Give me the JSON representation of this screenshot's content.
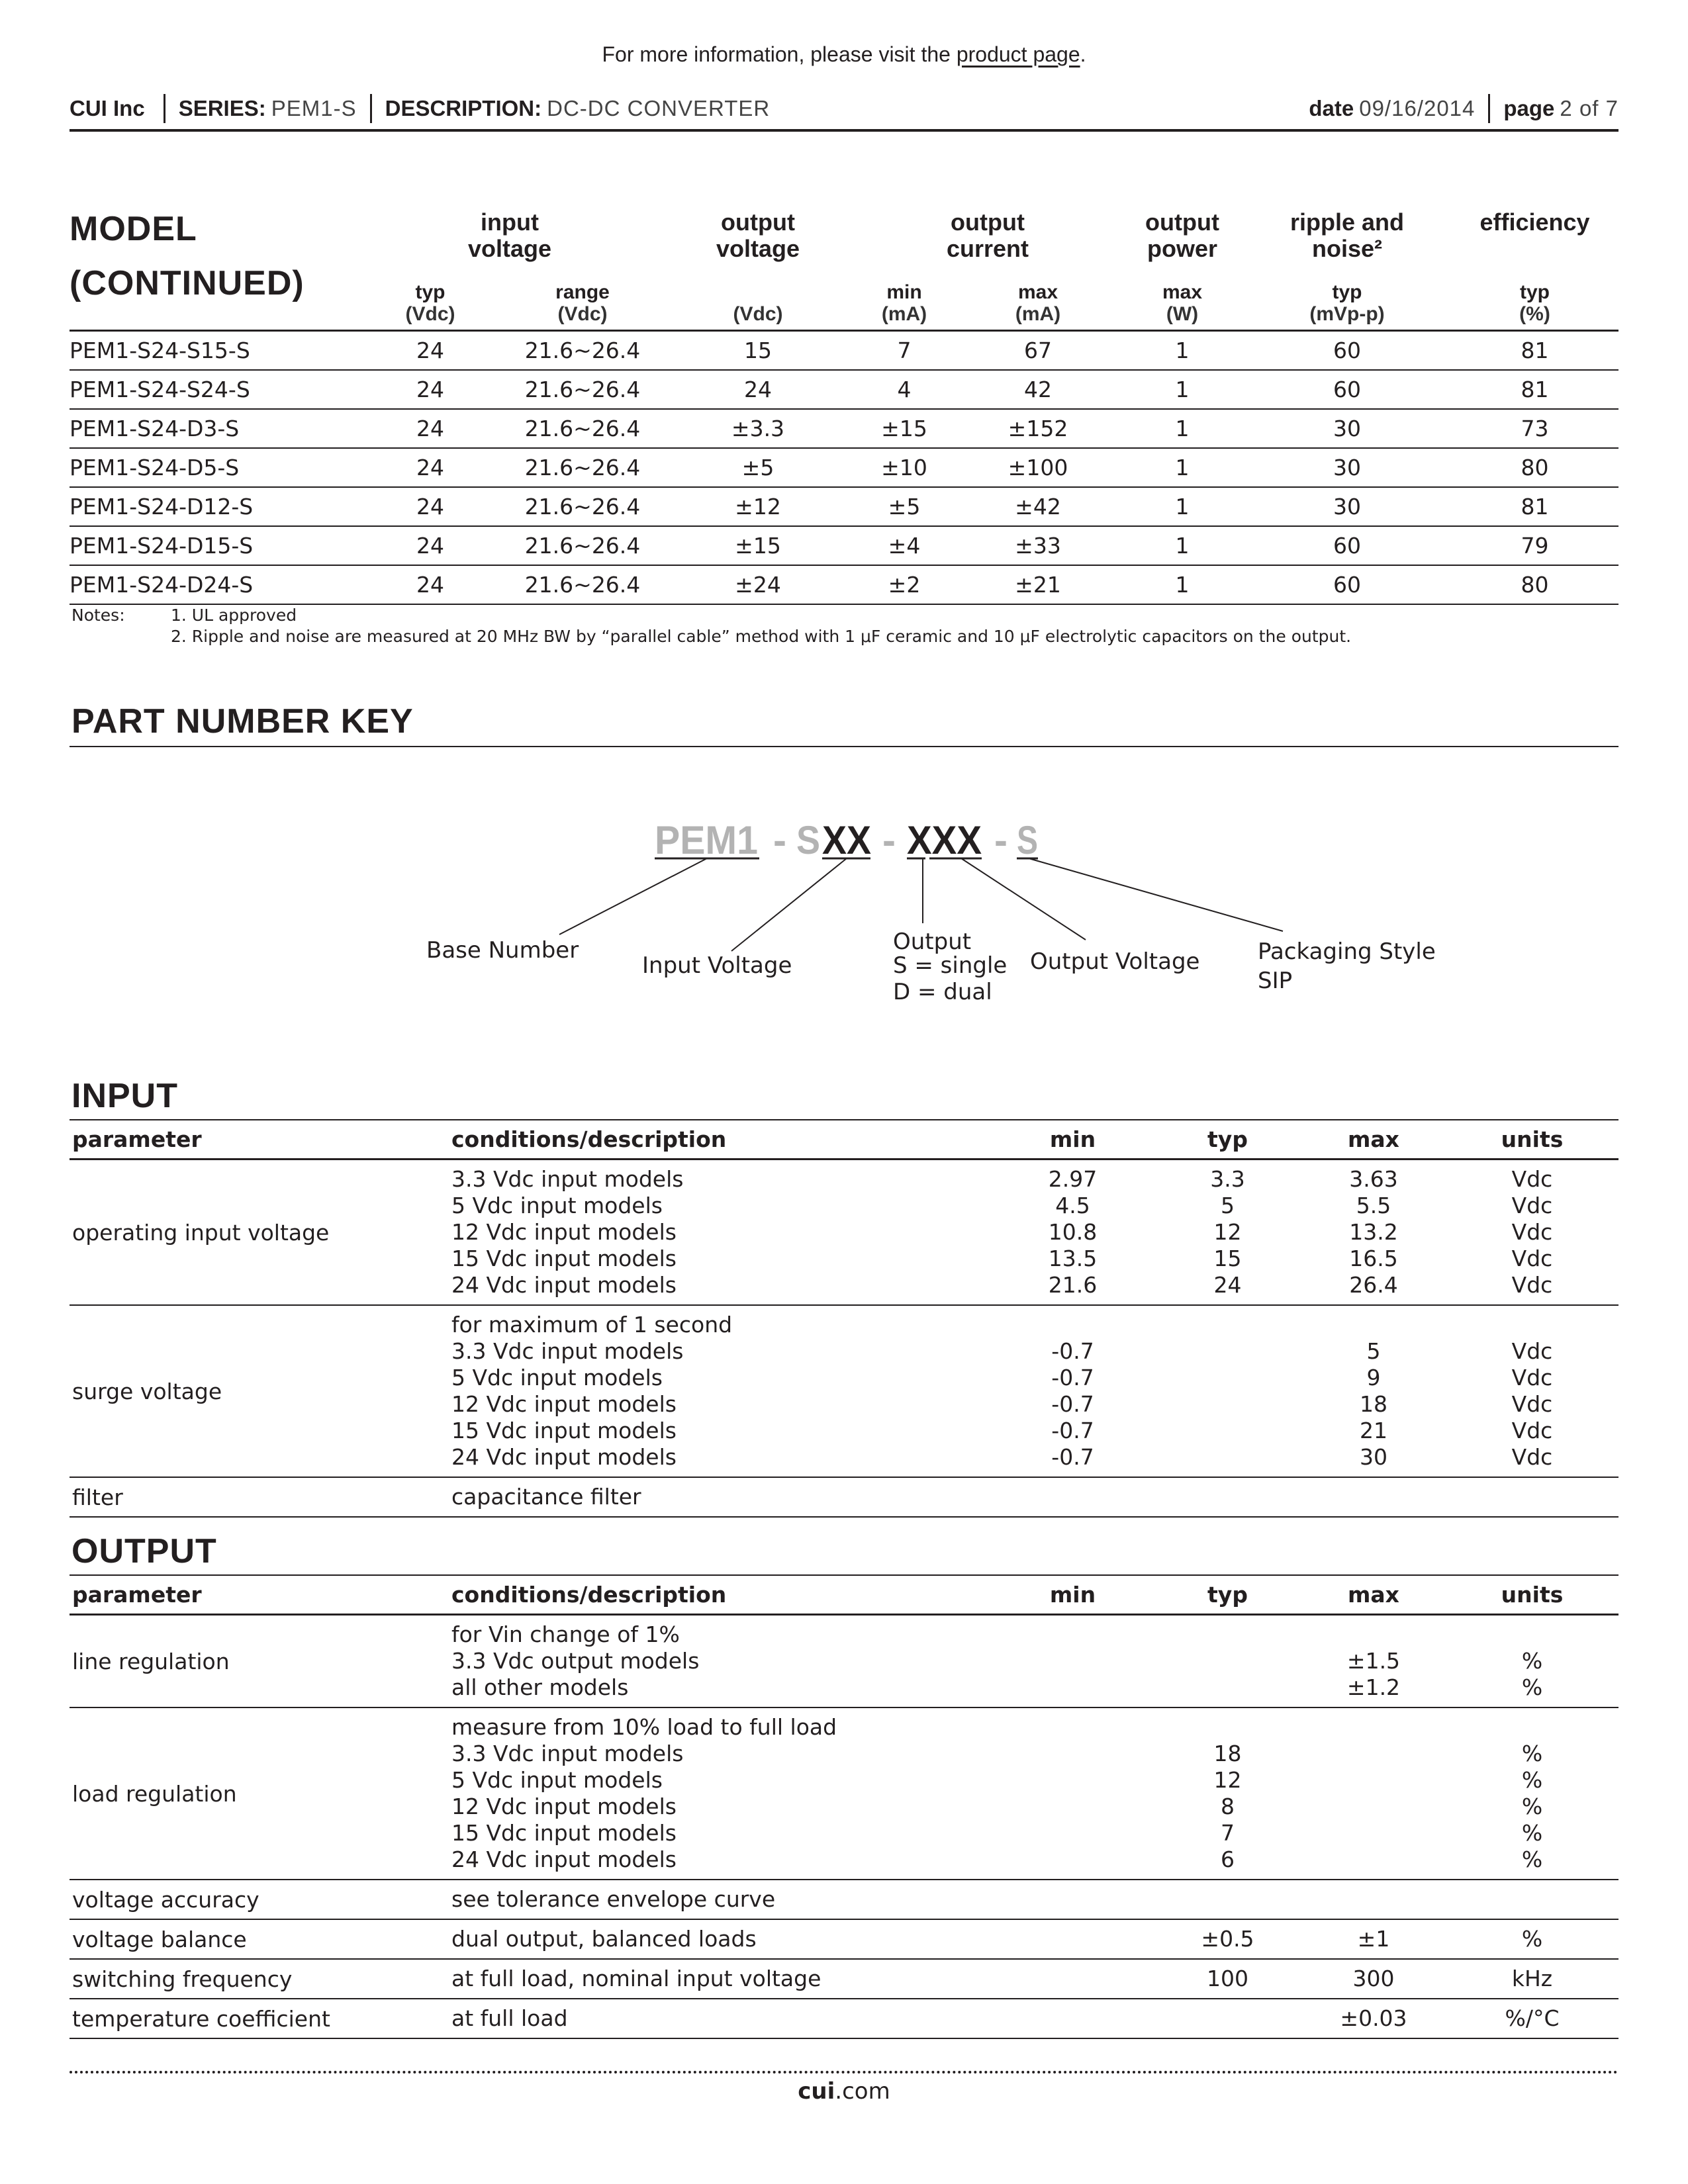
{
  "top_note": {
    "text": "For more information, please visit the ",
    "link": "product page",
    "end": "."
  },
  "header": {
    "company": "CUI Inc",
    "series_label": "SERIES:",
    "series": "PEM1-S",
    "description_label": "DESCRIPTION:",
    "description": "DC-DC CONVERTER",
    "date_label": "date",
    "date": "09/16/2014",
    "page_label": "page",
    "page": "2 of 7"
  },
  "model_table": {
    "title_line1": "MODEL",
    "title_line2": "(CONTINUED)",
    "groups": [
      "input voltage",
      "output voltage",
      "output current",
      "output power",
      "ripple and noise²",
      "efficiency"
    ],
    "subheaders": [
      "typ",
      "range",
      "",
      "min",
      "max",
      "max",
      "typ",
      "typ"
    ],
    "units": [
      "(Vdc)",
      "(Vdc)",
      "(Vdc)",
      "(mA)",
      "(mA)",
      "(W)",
      "(mVp-p)",
      "(%)"
    ],
    "rows": [
      [
        "PEM1-S24-S15-S",
        "24",
        "21.6~26.4",
        "15",
        "7",
        "67",
        "1",
        "60",
        "81"
      ],
      [
        "PEM1-S24-S24-S",
        "24",
        "21.6~26.4",
        "24",
        "4",
        "42",
        "1",
        "60",
        "81"
      ],
      [
        "PEM1-S24-D3-S",
        "24",
        "21.6~26.4",
        "±3.3",
        "±15",
        "±152",
        "1",
        "30",
        "73"
      ],
      [
        "PEM1-S24-D5-S",
        "24",
        "21.6~26.4",
        "±5",
        "±10",
        "±100",
        "1",
        "30",
        "80"
      ],
      [
        "PEM1-S24-D12-S",
        "24",
        "21.6~26.4",
        "±12",
        "±5",
        "±42",
        "1",
        "30",
        "81"
      ],
      [
        "PEM1-S24-D15-S",
        "24",
        "21.6~26.4",
        "±15",
        "±4",
        "±33",
        "1",
        "60",
        "79"
      ],
      [
        "PEM1-S24-D24-S",
        "24",
        "21.6~26.4",
        "±24",
        "±2",
        "±21",
        "1",
        "60",
        "80"
      ]
    ]
  },
  "notes": {
    "label": "Notes:",
    "items": [
      "1. UL approved",
      "2. Ripple and noise are measured at 20 MHz BW by “parallel cable” method with 1 μF ceramic and 10 μF electrolytic capacitors on the output."
    ]
  },
  "part_number_key": {
    "title": "PART NUMBER KEY",
    "code": {
      "base": "PEM1",
      "dash1": "-",
      "s": "S",
      "input": "XX",
      "dash2": "-",
      "output": "XXX",
      "dash3": "-",
      "pkg": "S"
    },
    "code_colors": {
      "fixed": "#b3b3b3",
      "variable": "#231f20"
    },
    "labels": {
      "base": "Base Number",
      "input": "Input Voltage",
      "output_type": [
        "Output",
        "S = single",
        "D = dual"
      ],
      "output_voltage": "Output Voltage",
      "packaging": [
        "Packaging Style",
        "SIP"
      ]
    }
  },
  "input": {
    "title": "INPUT",
    "columns": [
      "parameter",
      "conditions/description",
      "min",
      "typ",
      "max",
      "units"
    ],
    "rows": [
      {
        "param": "operating input voltage",
        "lines": [
          [
            "3.3 Vdc input models",
            "2.97",
            "3.3",
            "3.63",
            "Vdc"
          ],
          [
            "5 Vdc input models",
            "4.5",
            "5",
            "5.5",
            "Vdc"
          ],
          [
            "12 Vdc input models",
            "10.8",
            "12",
            "13.2",
            "Vdc"
          ],
          [
            "15 Vdc input models",
            "13.5",
            "15",
            "16.5",
            "Vdc"
          ],
          [
            "24 Vdc input models",
            "21.6",
            "24",
            "26.4",
            "Vdc"
          ]
        ]
      },
      {
        "param": "surge voltage",
        "lines": [
          [
            "for maximum of 1 second",
            "",
            "",
            "",
            ""
          ],
          [
            "3.3 Vdc input models",
            "-0.7",
            "",
            "5",
            "Vdc"
          ],
          [
            "5 Vdc input models",
            "-0.7",
            "",
            "9",
            "Vdc"
          ],
          [
            "12 Vdc input models",
            "-0.7",
            "",
            "18",
            "Vdc"
          ],
          [
            "15 Vdc input models",
            "-0.7",
            "",
            "21",
            "Vdc"
          ],
          [
            "24 Vdc input models",
            "-0.7",
            "",
            "30",
            "Vdc"
          ]
        ]
      },
      {
        "param": "filter",
        "lines": [
          [
            "capacitance filter",
            "",
            "",
            "",
            ""
          ]
        ]
      }
    ]
  },
  "output": {
    "title": "OUTPUT",
    "columns": [
      "parameter",
      "conditions/description",
      "min",
      "typ",
      "max",
      "units"
    ],
    "rows": [
      {
        "param": "line regulation",
        "lines": [
          [
            "for Vin change of 1%",
            "",
            "",
            "",
            ""
          ],
          [
            "3.3 Vdc output models",
            "",
            "",
            "±1.5",
            "%"
          ],
          [
            "all other models",
            "",
            "",
            "±1.2",
            "%"
          ]
        ]
      },
      {
        "param": "load regulation",
        "lines": [
          [
            "measure from 10% load to full load",
            "",
            "",
            "",
            ""
          ],
          [
            "3.3 Vdc input models",
            "",
            "18",
            "",
            "%"
          ],
          [
            "5 Vdc input models",
            "",
            "12",
            "",
            "%"
          ],
          [
            "12 Vdc input models",
            "",
            "8",
            "",
            "%"
          ],
          [
            "15 Vdc input models",
            "",
            "7",
            "",
            "%"
          ],
          [
            "24 Vdc input models",
            "",
            "6",
            "",
            "%"
          ]
        ]
      },
      {
        "param": "voltage accuracy",
        "lines": [
          [
            "see tolerance envelope curve",
            "",
            "",
            "",
            ""
          ]
        ]
      },
      {
        "param": "voltage balance",
        "lines": [
          [
            "dual output, balanced loads",
            "",
            "±0.5",
            "±1",
            "%"
          ]
        ]
      },
      {
        "param": "switching frequency",
        "lines": [
          [
            "at full load, nominal input voltage",
            "",
            "100",
            "300",
            "kHz"
          ]
        ]
      },
      {
        "param": "temperature coefficient",
        "lines": [
          [
            "at full load",
            "",
            "",
            "±0.03",
            "%/°C"
          ]
        ]
      }
    ]
  },
  "footer": {
    "bold": "cui",
    "rest": ".com"
  }
}
